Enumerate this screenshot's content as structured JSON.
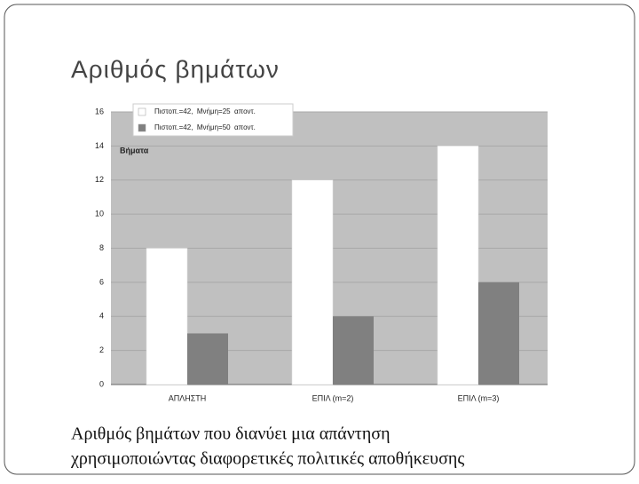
{
  "slide_title": "Αριθμός βημάτων",
  "caption": [
    "Αριθμός βημάτων που διανύει μια απάντηση",
    "χρησιμοποιώντας διαφορετικές πολιτικές αποθήκευσης"
  ],
  "chart_data": {
    "type": "bar",
    "y_label": "Βήματα",
    "categories": [
      "ΑΠΛΗΣΤΗ",
      "ΕΠΙΛ (m=2)",
      "ΕΠΙΛ (m=3)"
    ],
    "series": [
      {
        "name": "Πιστοπ.=42,  Μνήμη=25  αποντ.",
        "color": "#ffffff",
        "values": [
          8,
          12,
          14
        ]
      },
      {
        "name": "Πιστοπ.=42,  Μνήμη=50  αποντ.",
        "color": "#808080",
        "values": [
          3,
          4,
          6
        ]
      }
    ],
    "ylim": [
      0,
      16
    ],
    "yticks": [
      0,
      2,
      4,
      6,
      8,
      10,
      12,
      14,
      16
    ],
    "grid": true,
    "legend": "top-left"
  }
}
